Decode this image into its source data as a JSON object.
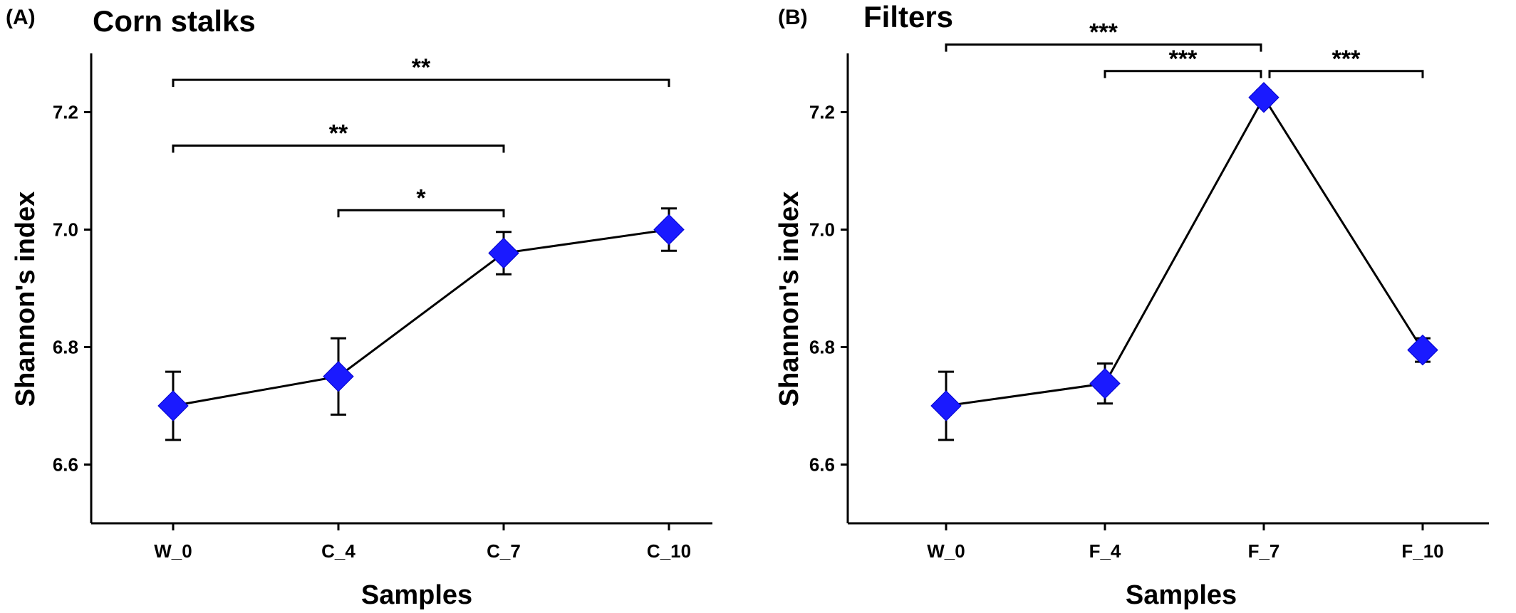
{
  "chart_data": [
    {
      "type": "line",
      "panel_label": "(A)",
      "title": "Corn stalks",
      "xlabel": "Samples",
      "ylabel": "Shannon's index",
      "categories": [
        "W_0",
        "C_4",
        "C_7",
        "C_10"
      ],
      "values": [
        6.7,
        6.75,
        6.96,
        7.0
      ],
      "errors": [
        0.058,
        0.065,
        0.036,
        0.036
      ],
      "ylim": [
        6.5,
        7.3
      ],
      "yticks": [
        6.6,
        6.8,
        7.0,
        7.2
      ],
      "ytick_labels": [
        "6.6",
        "6.8",
        "7.0",
        "7.2"
      ],
      "marker_color": "#1a1aff",
      "line_color": "#000000",
      "significance": [
        {
          "from": 0,
          "to": 3,
          "label": "**",
          "y": 7.255
        },
        {
          "from": 0,
          "to": 2,
          "label": "**",
          "y": 7.143
        },
        {
          "from": 1,
          "to": 2,
          "label": "*",
          "y": 7.033
        }
      ]
    },
    {
      "type": "line",
      "panel_label": "(B)",
      "title": "Filters",
      "xlabel": "Samples",
      "ylabel": "Shannon's index",
      "categories": [
        "W_0",
        "F_4",
        "F_7",
        "F_10"
      ],
      "values": [
        6.7,
        6.738,
        7.225,
        6.795
      ],
      "errors": [
        0.058,
        0.034,
        0.012,
        0.02
      ],
      "ylim": [
        6.5,
        7.3
      ],
      "yticks": [
        6.6,
        6.8,
        7.0,
        7.2
      ],
      "ytick_labels": [
        "6.6",
        "6.8",
        "7.0",
        "7.2"
      ],
      "marker_color": "#1a1aff",
      "line_color": "#000000",
      "significance": [
        {
          "from": 0,
          "to": 2,
          "label": "***",
          "y": 7.315
        },
        {
          "from": 1,
          "to": 2,
          "label": "***",
          "y": 7.27
        },
        {
          "from": 2,
          "to": 3,
          "label": "***",
          "y": 7.27
        }
      ]
    }
  ]
}
